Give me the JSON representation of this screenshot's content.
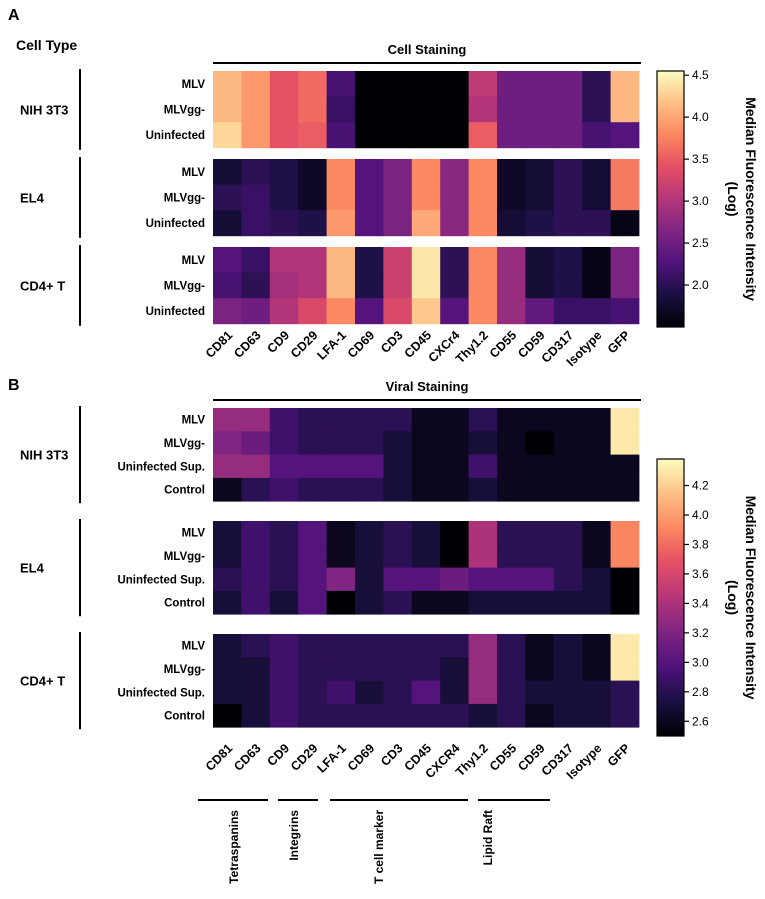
{
  "panel_a": {
    "panel_label": "A",
    "header": "Cell Type",
    "title": "Cell Staining",
    "colorbar": {
      "title": "Median Fluorescence Intensity (Log)",
      "title_lines": [
        "Median Fluorescence Intensity",
        "(Log)"
      ],
      "range": [
        1.5,
        4.55
      ],
      "ticks": [
        "4.5",
        "4.0",
        "3.5",
        "3.0",
        "2.5",
        "2.0"
      ],
      "tick_values": [
        4.5,
        4.0,
        3.5,
        3.0,
        2.5,
        2.0
      ]
    }
  },
  "panel_b": {
    "panel_label": "B",
    "title": "Viral Staining",
    "colorbar": {
      "title": "Median Fluorescence Intensity (Log)",
      "title_lines": [
        "Median Fluorescence Intensity",
        "(Log)"
      ],
      "range": [
        2.5,
        4.38
      ],
      "ticks": [
        "4.2",
        "4.0",
        "3.8",
        "3.6",
        "3.4",
        "3.2",
        "3.0",
        "2.8",
        "2.6"
      ],
      "tick_values": [
        4.2,
        4.0,
        3.8,
        3.6,
        3.4,
        3.2,
        3.0,
        2.8,
        2.6
      ]
    },
    "marker_groups": [
      {
        "label": "Tetraspanins"
      },
      {
        "label": "Integrins"
      },
      {
        "label": "T cell marker"
      },
      {
        "label": "Lipid Raft"
      }
    ]
  },
  "chart_data": [
    {
      "type": "heatmap",
      "title": "Cell Staining",
      "columns": [
        "CD81",
        "CD63",
        "CD9",
        "CD29",
        "LFA-1",
        "CD69",
        "CD3",
        "CD45",
        "CXCr4",
        "Thy1.2",
        "CD55",
        "CD59",
        "CD317",
        "Isotype",
        "GFP"
      ],
      "groups": [
        {
          "name": "NIH 3T3",
          "rows": [
            {
              "label": "MLV",
              "values": [
                4.1,
                3.9,
                3.4,
                3.6,
                2.2,
                1.5,
                1.5,
                1.5,
                1.5,
                3.1,
                2.5,
                2.5,
                2.5,
                2.0,
                4.1
              ]
            },
            {
              "label": "MLVgg-",
              "values": [
                4.1,
                3.9,
                3.4,
                3.6,
                2.1,
                1.5,
                1.5,
                1.5,
                1.5,
                3.0,
                2.5,
                2.5,
                2.5,
                2.0,
                4.1
              ]
            },
            {
              "label": "Uninfected",
              "values": [
                4.3,
                3.9,
                3.4,
                3.5,
                2.2,
                1.5,
                1.5,
                1.5,
                1.5,
                3.5,
                2.5,
                2.5,
                2.5,
                2.2,
                2.3
              ]
            }
          ]
        },
        {
          "name": "EL4",
          "rows": [
            {
              "label": "MLV",
              "values": [
                1.8,
                2.0,
                1.9,
                1.7,
                3.8,
                2.3,
                2.6,
                3.8,
                2.7,
                3.8,
                1.7,
                1.8,
                2.0,
                1.8,
                3.7
              ]
            },
            {
              "label": "MLVgg-",
              "values": [
                2.0,
                2.1,
                1.9,
                1.7,
                3.8,
                2.3,
                2.6,
                3.8,
                2.7,
                3.8,
                1.7,
                1.8,
                2.0,
                1.8,
                3.7
              ]
            },
            {
              "label": "Uninfected",
              "values": [
                1.8,
                2.1,
                2.0,
                1.9,
                3.9,
                2.3,
                2.6,
                4.0,
                2.7,
                3.8,
                1.8,
                1.9,
                2.0,
                2.0,
                1.6
              ]
            }
          ]
        },
        {
          "name": "CD4+ T",
          "rows": [
            {
              "label": "MLV",
              "values": [
                2.3,
                2.1,
                3.0,
                3.0,
                4.1,
                1.9,
                3.2,
                4.4,
                2.0,
                3.8,
                2.8,
                1.8,
                1.9,
                1.6,
                2.6
              ]
            },
            {
              "label": "MLVgg-",
              "values": [
                2.2,
                2.0,
                2.9,
                3.0,
                4.1,
                1.9,
                3.2,
                4.4,
                2.0,
                3.8,
                2.8,
                1.8,
                1.9,
                1.6,
                2.6
              ]
            },
            {
              "label": "Uninfected",
              "values": [
                2.6,
                2.5,
                3.0,
                3.3,
                3.8,
                2.3,
                3.3,
                4.2,
                2.3,
                3.8,
                2.8,
                2.4,
                2.1,
                2.1,
                2.2
              ]
            }
          ]
        }
      ],
      "colorbar": {
        "label": "Median Fluorescence Intensity (Log)",
        "ticks": [
          2.0,
          2.5,
          3.0,
          3.5,
          4.0,
          4.5
        ],
        "range": [
          1.5,
          4.55
        ]
      }
    },
    {
      "type": "heatmap",
      "title": "Viral Staining",
      "columns": [
        "CD81",
        "CD63",
        "CD9",
        "CD29",
        "LFA-1",
        "CD69",
        "CD3",
        "CD45",
        "CXCR4",
        "Thy1.2",
        "CD55",
        "CD59",
        "CD317",
        "Isotype",
        "GFP"
      ],
      "groups": [
        {
          "name": "NIH 3T3",
          "rows": [
            {
              "label": "MLV",
              "values": [
                3.3,
                3.3,
                2.9,
                2.8,
                2.8,
                2.8,
                2.8,
                2.6,
                2.6,
                2.8,
                2.6,
                2.6,
                2.6,
                2.6,
                4.3
              ]
            },
            {
              "label": "MLVgg-",
              "values": [
                3.2,
                3.1,
                2.9,
                2.8,
                2.8,
                2.8,
                2.7,
                2.6,
                2.6,
                2.7,
                2.6,
                2.5,
                2.6,
                2.6,
                4.3
              ]
            },
            {
              "label": "Uninfected Sup.",
              "values": [
                3.3,
                3.3,
                3.0,
                3.0,
                3.0,
                3.0,
                2.7,
                2.6,
                2.6,
                2.9,
                2.6,
                2.6,
                2.6,
                2.6,
                2.6
              ]
            },
            {
              "label": "Control",
              "values": [
                2.6,
                2.8,
                2.9,
                2.8,
                2.8,
                2.8,
                2.7,
                2.6,
                2.6,
                2.7,
                2.6,
                2.6,
                2.6,
                2.6,
                2.6
              ]
            }
          ]
        },
        {
          "name": "EL4",
          "rows": [
            {
              "label": "MLV",
              "values": [
                2.7,
                2.9,
                2.8,
                3.0,
                2.6,
                2.7,
                2.8,
                2.7,
                2.5,
                3.4,
                2.8,
                2.8,
                2.8,
                2.6,
                3.9
              ]
            },
            {
              "label": "MLVgg-",
              "values": [
                2.7,
                2.9,
                2.8,
                3.0,
                2.6,
                2.7,
                2.8,
                2.7,
                2.5,
                3.4,
                2.8,
                2.8,
                2.8,
                2.6,
                3.9
              ]
            },
            {
              "label": "Uninfected Sup.",
              "values": [
                2.8,
                2.9,
                2.8,
                3.0,
                3.2,
                2.7,
                3.0,
                3.0,
                3.1,
                3.0,
                3.0,
                3.0,
                2.8,
                2.7,
                2.5
              ]
            },
            {
              "label": "Control",
              "values": [
                2.7,
                2.9,
                2.7,
                3.0,
                2.5,
                2.7,
                2.8,
                2.6,
                2.6,
                2.7,
                2.7,
                2.7,
                2.7,
                2.7,
                2.5
              ]
            }
          ]
        },
        {
          "name": "CD4+ T",
          "rows": [
            {
              "label": "MLV",
              "values": [
                2.7,
                2.8,
                2.9,
                2.8,
                2.8,
                2.8,
                2.8,
                2.8,
                2.8,
                3.3,
                2.8,
                2.6,
                2.7,
                2.6,
                4.3
              ]
            },
            {
              "label": "MLVgg-",
              "values": [
                2.7,
                2.7,
                2.9,
                2.8,
                2.8,
                2.8,
                2.8,
                2.8,
                2.7,
                3.3,
                2.8,
                2.6,
                2.7,
                2.6,
                4.3
              ]
            },
            {
              "label": "Uninfected Sup.",
              "values": [
                2.7,
                2.7,
                2.9,
                2.8,
                2.9,
                2.7,
                2.8,
                3.0,
                2.7,
                3.3,
                2.8,
                2.7,
                2.7,
                2.7,
                2.8
              ]
            },
            {
              "label": "Control",
              "values": [
                2.5,
                2.7,
                2.9,
                2.8,
                2.8,
                2.8,
                2.8,
                2.8,
                2.8,
                2.7,
                2.8,
                2.6,
                2.7,
                2.7,
                2.8
              ]
            }
          ]
        }
      ],
      "colorbar": {
        "label": "Median Fluorescence Intensity (Log)",
        "ticks": [
          2.6,
          2.8,
          3.0,
          3.2,
          3.4,
          3.6,
          3.8,
          4.0,
          4.2
        ],
        "range": [
          2.5,
          4.38
        ]
      }
    }
  ]
}
